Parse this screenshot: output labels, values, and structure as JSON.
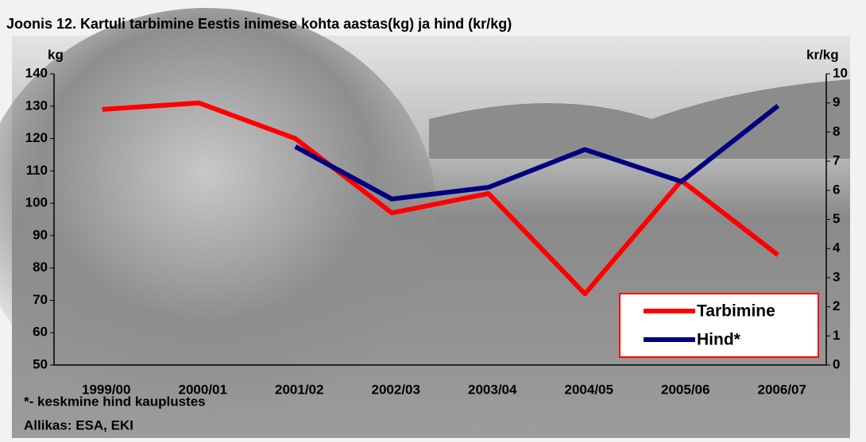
{
  "chart_data": {
    "type": "line",
    "title": "Joonis 12. Kartuli tarbimine Eestis inimese kohta aastas(kg) ja hind (kr/kg)",
    "y_label": "kg",
    "y2_label": "kr/kg",
    "categories": [
      "1999/00",
      "2000/01",
      "2001/02",
      "2002/03",
      "2003/04",
      "2004/05",
      "2005/06",
      "2006/07"
    ],
    "series": [
      {
        "name": "Tarbimine",
        "color": "#ff0000",
        "values": [
          129,
          131,
          120,
          97,
          103,
          72,
          107,
          84
        ]
      },
      {
        "name": "Hind*",
        "color": "#000080",
        "axis": "y2",
        "values": [
          null,
          null,
          7.5,
          5.7,
          6.1,
          7.4,
          6.3,
          8.9
        ]
      }
    ],
    "ylim": [
      50,
      140
    ],
    "yticks": [
      50,
      60,
      70,
      80,
      90,
      100,
      110,
      120,
      130,
      140
    ],
    "y2lim": [
      0,
      10
    ],
    "y2ticks": [
      0,
      1,
      2,
      3,
      4,
      5,
      6,
      7,
      8,
      9,
      10
    ],
    "legend": "lower right",
    "notes": [
      "*- keskmine hind kauplustes",
      "Allikas: ESA, EKI"
    ]
  }
}
